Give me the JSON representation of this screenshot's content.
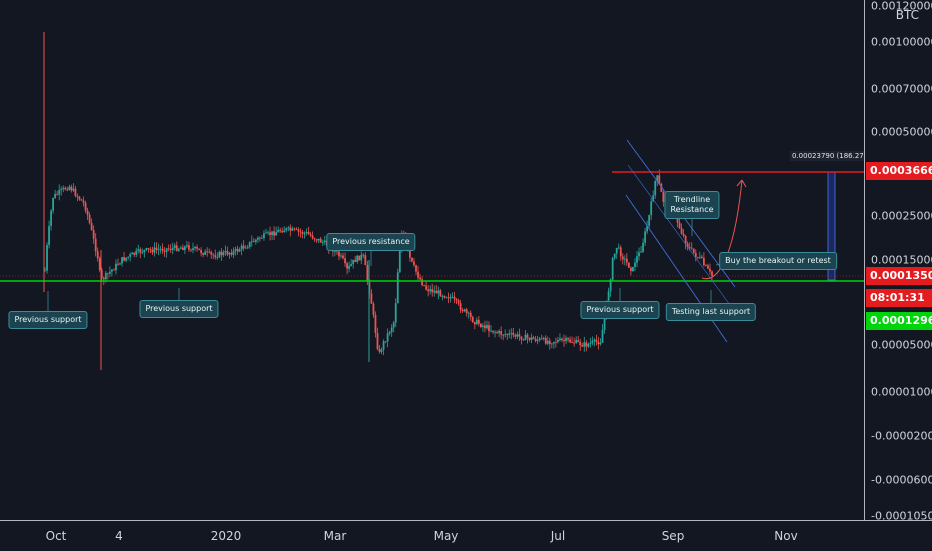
{
  "chart_data": {
    "type": "candlestick",
    "quote_unit": "BTC",
    "y_ticks": [
      "0.00120000",
      "0.00100000",
      "0.00070000",
      "0.00050000",
      "0.00025000",
      "0.00015000",
      "0.00005000",
      "0.00001000",
      "-0.00002000",
      "-0.00006000",
      "-0.00010500"
    ],
    "x_ticks": [
      "Oct",
      "4",
      "2020",
      "Mar",
      "May",
      "Jul",
      "Sep",
      "Nov"
    ],
    "price_tags": {
      "resistance": "0.00036664",
      "last": "0.00013501",
      "countdown": "08:01:31",
      "support": "0.00012961"
    },
    "measure_label": "0.00023790 (186.27%) 2379",
    "annotations": [
      {
        "id": "prev-support-1",
        "text": "Previous support"
      },
      {
        "id": "prev-support-2",
        "text": "Previous support"
      },
      {
        "id": "prev-resistance",
        "text": "Previous resistance"
      },
      {
        "id": "prev-support-3",
        "text": "Previous support"
      },
      {
        "id": "trendline-resistance",
        "lines": [
          "Trendline",
          "Resistance"
        ]
      },
      {
        "id": "buy-breakout",
        "text": "Buy the breakout or retest"
      },
      {
        "id": "testing-support",
        "text": "Testing last support"
      }
    ],
    "price_path": [
      [
        0,
        0.00014
      ],
      [
        1,
        0.0003
      ],
      [
        3,
        0.00033
      ],
      [
        5,
        0.00028
      ],
      [
        7,
        0.00013
      ],
      [
        9,
        0.000145
      ],
      [
        12,
        0.00017
      ],
      [
        15,
        0.000175
      ],
      [
        18,
        0.00018
      ],
      [
        21,
        0.00016
      ],
      [
        24,
        0.00017
      ],
      [
        27,
        0.0002
      ],
      [
        30,
        0.00022
      ],
      [
        33,
        0.00021
      ],
      [
        36,
        0.00018
      ],
      [
        38,
        0.00014
      ],
      [
        40,
        0.00016
      ],
      [
        41,
        0.00011
      ],
      [
        42,
        4e-05
      ],
      [
        44,
        8e-05
      ],
      [
        45,
        0.00022
      ],
      [
        46,
        0.00015
      ],
      [
        48,
        0.00012
      ],
      [
        51,
        0.00011
      ],
      [
        54,
        8e-05
      ],
      [
        57,
        6.5e-05
      ],
      [
        60,
        6e-05
      ],
      [
        63,
        5.5e-05
      ],
      [
        66,
        5.5e-05
      ],
      [
        68,
        5e-05
      ],
      [
        70,
        5.5e-05
      ],
      [
        71,
        0.00012
      ],
      [
        72,
        0.00018
      ],
      [
        73,
        0.00015
      ],
      [
        74,
        0.00014
      ],
      [
        75,
        0.00017
      ],
      [
        76,
        0.00024
      ],
      [
        77,
        0.00036
      ],
      [
        78,
        0.00028
      ],
      [
        79,
        0.00027
      ],
      [
        80,
        0.00022
      ],
      [
        81,
        0.00018
      ],
      [
        82,
        0.00016
      ],
      [
        83,
        0.000145
      ],
      [
        84,
        0.000135
      ]
    ],
    "levels": {
      "resistance": 0.00036664,
      "support": 0.00012961
    }
  }
}
